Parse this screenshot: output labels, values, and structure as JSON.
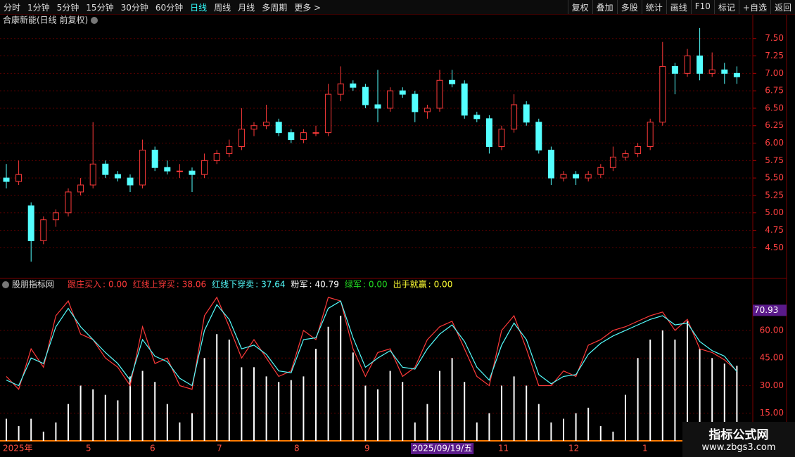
{
  "toolbar": {
    "periods": [
      "分时",
      "1分钟",
      "5分钟",
      "15分钟",
      "30分钟",
      "60分钟",
      "日线",
      "周线",
      "月线",
      "多周期",
      "更多 >"
    ],
    "active": 6,
    "tools": [
      "复权",
      "叠加",
      "多股",
      "统计",
      "画线",
      "F10",
      "标记",
      "+自选",
      "返回"
    ]
  },
  "watermark": {
    "title": "指标公式网",
    "url": "www.zbgs3.com"
  },
  "x_axis": [
    "2025年",
    "5",
    "6",
    "7",
    "8",
    "9",
    "2025/09/19/五",
    "11",
    "12",
    "1"
  ],
  "chart_data": [
    {
      "type": "candlestick",
      "title": "合康新能(日线 前复权)",
      "up_color": "#ff3a3a",
      "down_color": "#54ffff",
      "ylim": [
        4.07,
        7.83
      ],
      "yticks": [
        {
          "value": 4.5,
          "label": "4.50"
        },
        {
          "value": 4.75,
          "label": "4.75"
        },
        {
          "value": 5,
          "label": "5.00"
        },
        {
          "value": 5.25,
          "label": "5.25"
        },
        {
          "value": 5.5,
          "label": "5.50"
        },
        {
          "value": 5.75,
          "label": "5.75"
        },
        {
          "value": 6,
          "label": "6.00"
        },
        {
          "value": 6.25,
          "label": "6.25"
        },
        {
          "value": 6.5,
          "label": "6.50"
        },
        {
          "value": 6.75,
          "label": "6.75"
        },
        {
          "value": 7,
          "label": "7.00"
        },
        {
          "value": 7.25,
          "label": "7.25"
        },
        {
          "value": 7.5,
          "label": "7.50"
        }
      ],
      "grid": true,
      "candles": [
        [
          5.5,
          5.7,
          5.35,
          5.45
        ],
        [
          5.45,
          5.75,
          5.4,
          5.55
        ],
        [
          5.1,
          5.15,
          4.3,
          4.6
        ],
        [
          4.6,
          4.95,
          4.55,
          4.9
        ],
        [
          4.9,
          5.05,
          4.8,
          5.0
        ],
        [
          5.0,
          5.35,
          4.95,
          5.3
        ],
        [
          5.3,
          5.5,
          5.25,
          5.4
        ],
        [
          5.4,
          6.3,
          5.35,
          5.7
        ],
        [
          5.7,
          5.75,
          5.5,
          5.55
        ],
        [
          5.55,
          5.6,
          5.45,
          5.5
        ],
        [
          5.5,
          5.55,
          5.3,
          5.4
        ],
        [
          5.4,
          6.05,
          5.35,
          5.9
        ],
        [
          5.9,
          5.95,
          5.6,
          5.65
        ],
        [
          5.65,
          5.75,
          5.55,
          5.6
        ],
        [
          5.6,
          5.7,
          5.5,
          5.6
        ],
        [
          5.6,
          5.65,
          5.3,
          5.55
        ],
        [
          5.55,
          5.85,
          5.5,
          5.75
        ],
        [
          5.75,
          5.9,
          5.7,
          5.85
        ],
        [
          5.85,
          6.05,
          5.8,
          5.95
        ],
        [
          5.95,
          6.5,
          5.9,
          6.2
        ],
        [
          6.2,
          6.3,
          6.1,
          6.25
        ],
        [
          6.25,
          6.55,
          6.2,
          6.3
        ],
        [
          6.3,
          6.35,
          6.1,
          6.15
        ],
        [
          6.15,
          6.2,
          6.0,
          6.05
        ],
        [
          6.05,
          6.2,
          6.0,
          6.15
        ],
        [
          6.15,
          6.25,
          6.1,
          6.15
        ],
        [
          6.15,
          6.85,
          6.1,
          6.7
        ],
        [
          6.7,
          7.1,
          6.6,
          6.85
        ],
        [
          6.85,
          6.9,
          6.75,
          6.8
        ],
        [
          6.8,
          6.85,
          6.5,
          6.55
        ],
        [
          6.55,
          7.05,
          6.3,
          6.5
        ],
        [
          6.5,
          6.8,
          6.45,
          6.75
        ],
        [
          6.75,
          6.8,
          6.65,
          6.7
        ],
        [
          6.7,
          6.75,
          6.3,
          6.45
        ],
        [
          6.45,
          6.55,
          6.35,
          6.5
        ],
        [
          6.5,
          7.05,
          6.45,
          6.9
        ],
        [
          6.9,
          7.05,
          6.8,
          6.85
        ],
        [
          6.85,
          6.9,
          6.35,
          6.4
        ],
        [
          6.4,
          6.45,
          6.3,
          6.35
        ],
        [
          6.35,
          6.4,
          5.85,
          5.95
        ],
        [
          5.95,
          6.25,
          5.9,
          6.2
        ],
        [
          6.2,
          6.7,
          6.15,
          6.55
        ],
        [
          6.55,
          6.6,
          6.25,
          6.3
        ],
        [
          6.3,
          6.35,
          5.85,
          5.9
        ],
        [
          5.9,
          5.95,
          5.4,
          5.5
        ],
        [
          5.5,
          5.6,
          5.45,
          5.55
        ],
        [
          5.55,
          5.6,
          5.4,
          5.5
        ],
        [
          5.5,
          5.6,
          5.45,
          5.55
        ],
        [
          5.55,
          5.7,
          5.5,
          5.65
        ],
        [
          5.65,
          5.95,
          5.6,
          5.8
        ],
        [
          5.8,
          5.9,
          5.75,
          5.85
        ],
        [
          5.85,
          6.0,
          5.8,
          5.95
        ],
        [
          5.95,
          6.35,
          5.9,
          6.3
        ],
        [
          6.3,
          7.45,
          6.25,
          7.1
        ],
        [
          7.1,
          7.15,
          6.7,
          7.0
        ],
        [
          7.0,
          7.35,
          6.95,
          7.25
        ],
        [
          7.25,
          7.65,
          6.9,
          7.0
        ],
        [
          7.0,
          7.3,
          6.95,
          7.05
        ],
        [
          7.05,
          7.15,
          6.85,
          7.0
        ],
        [
          7.0,
          7.1,
          6.85,
          6.95
        ]
      ]
    },
    {
      "type": "indicator",
      "title": "股朋指标网",
      "legend": [
        {
          "name": "跟庄买入",
          "value": 0,
          "value_label": "0.00",
          "color": "#ff3a3a"
        },
        {
          "name": "红线上穿买",
          "value": 38.06,
          "color": "#ff3a3a"
        },
        {
          "name": "红线下穿卖",
          "value": 37.64,
          "color": "#54ffff"
        },
        {
          "name": "粉军",
          "value": 40.79,
          "color": "#ffffff"
        },
        {
          "name": "绿军",
          "value": 0,
          "value_label": "0.00",
          "color": "#22dd22"
        },
        {
          "name": "出手就赢",
          "value": 0,
          "value_label": "0.00",
          "color": "#ffff33"
        }
      ],
      "ylim": [
        0,
        87.5
      ],
      "yticks": [
        {
          "value": 15,
          "label": "15.00"
        },
        {
          "value": 30,
          "label": "30.00"
        },
        {
          "value": 45,
          "label": "45.00"
        },
        {
          "value": 60,
          "label": "60.00"
        }
      ],
      "current": 70.93,
      "grid": true,
      "series": [
        {
          "kind": "bars",
          "color": "#ffffff",
          "values": [
            12,
            8,
            12,
            5,
            10,
            20,
            30,
            28,
            25,
            22,
            35,
            38,
            32,
            20,
            10,
            15,
            45,
            58,
            55,
            40,
            40,
            35,
            32,
            33,
            35,
            50,
            62,
            68,
            48,
            30,
            28,
            38,
            32,
            10,
            20,
            38,
            45,
            32,
            10,
            15,
            30,
            35,
            30,
            20,
            10,
            12,
            15,
            18,
            8,
            5,
            25,
            45,
            55,
            60,
            55,
            65,
            50,
            45,
            42,
            40.79
          ]
        },
        {
          "kind": "line",
          "color": "#ff3a3a",
          "values": [
            35,
            28,
            50,
            40,
            68,
            76,
            58,
            55,
            45,
            40,
            30,
            62,
            42,
            45,
            30,
            28,
            68,
            78,
            62,
            45,
            55,
            45,
            35,
            38,
            60,
            55,
            78,
            76,
            50,
            35,
            48,
            50,
            35,
            40,
            55,
            62,
            65,
            50,
            35,
            30,
            60,
            68,
            50,
            30,
            30,
            38,
            35,
            52,
            55,
            60,
            62,
            65,
            68,
            70,
            60,
            66,
            50,
            48,
            44,
            38.06
          ]
        },
        {
          "kind": "line",
          "color": "#54ffff",
          "values": [
            33,
            30,
            45,
            42,
            62,
            72,
            62,
            55,
            48,
            42,
            33,
            55,
            46,
            43,
            34,
            30,
            60,
            74,
            66,
            50,
            52,
            47,
            38,
            37,
            55,
            56,
            72,
            76,
            56,
            40,
            45,
            49,
            40,
            39,
            50,
            58,
            63,
            54,
            40,
            33,
            52,
            64,
            55,
            36,
            31,
            35,
            36,
            47,
            53,
            57,
            60,
            63,
            66,
            68,
            63,
            64,
            54,
            49,
            46,
            37.64
          ]
        }
      ]
    }
  ]
}
